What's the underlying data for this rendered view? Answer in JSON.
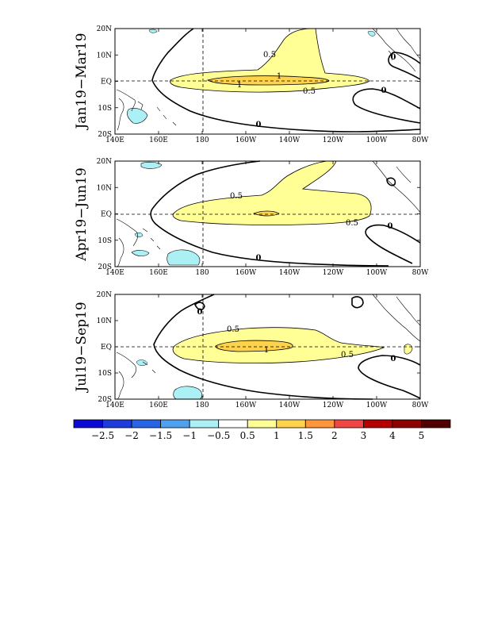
{
  "panels": [
    {
      "label": "Jan19−Mar19",
      "contour_labels": [
        "0.5",
        "1",
        "1",
        "0.5",
        "0",
        "0",
        "0"
      ]
    },
    {
      "label": "Apr19−Jun19",
      "contour_labels": [
        "0.5",
        "0.5",
        "0",
        "0"
      ]
    },
    {
      "label": "Jul19−Sep19",
      "contour_labels": [
        "0.5",
        "1",
        "0.5",
        "0",
        "0"
      ]
    }
  ],
  "axes": {
    "x_ticks": [
      "140E",
      "160E",
      "180",
      "160W",
      "140W",
      "120W",
      "100W",
      "80W"
    ],
    "y_ticks": [
      "20N",
      "10N",
      "EQ",
      "10S",
      "20S"
    ]
  },
  "colorbar": {
    "labels": [
      "−2.5",
      "−2",
      "−1.5",
      "−1",
      "−0.5",
      "0.5",
      "1",
      "1.5",
      "2",
      "3",
      "4",
      "5"
    ],
    "colors": [
      "#0a0ad2",
      "#1e3cdc",
      "#2864e6",
      "#50a0f0",
      "#aaf0f5",
      "#ffffff",
      "#ffff96",
      "#ffd24b",
      "#ff963c",
      "#f04646",
      "#b40000",
      "#8c0000",
      "#500000"
    ]
  },
  "colors": {
    "positive_light": "#ffff96",
    "positive_mid": "#ffd24b",
    "positive_strong": "#ff963c",
    "negative_light": "#aaf0f5"
  }
}
